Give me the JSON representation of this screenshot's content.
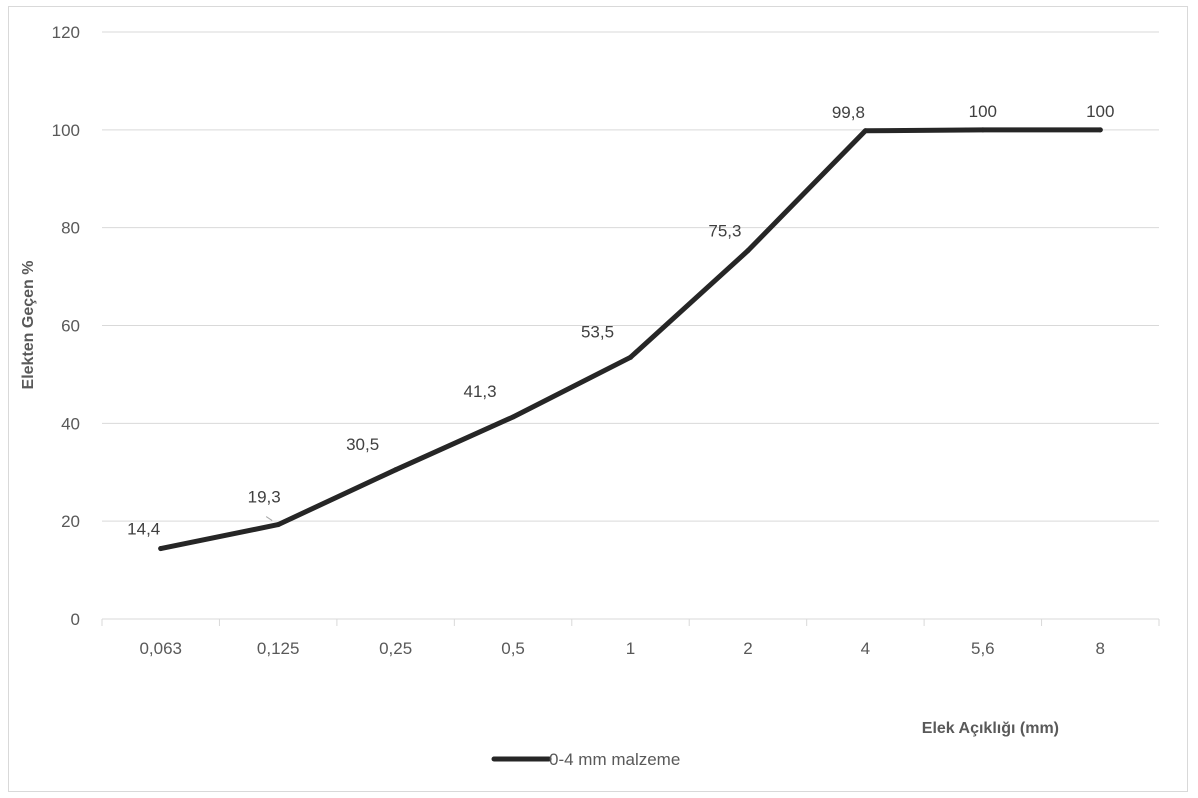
{
  "chart_data": {
    "type": "line",
    "categories": [
      "0,063",
      "0,125",
      "0,25",
      "0,5",
      "1",
      "2",
      "4",
      "5,6",
      "8"
    ],
    "series": [
      {
        "name": "0-4 mm malzeme",
        "values": [
          14.4,
          19.3,
          30.5,
          41.3,
          53.5,
          75.3,
          99.8,
          100,
          100
        ],
        "data_labels": [
          "14,4",
          "19,3",
          "30,5",
          "41,3",
          "53,5",
          "75,3",
          "99,8",
          "100",
          "100"
        ],
        "color": "#262626"
      }
    ],
    "xlabel": "Elek Açıklığı (mm)",
    "ylabel": "Elekten Geçen %",
    "ylim": [
      0,
      120
    ],
    "yticks": [
      "0",
      "20",
      "40",
      "60",
      "80",
      "100",
      "120"
    ],
    "grid": true,
    "legend_position": "bottom"
  }
}
